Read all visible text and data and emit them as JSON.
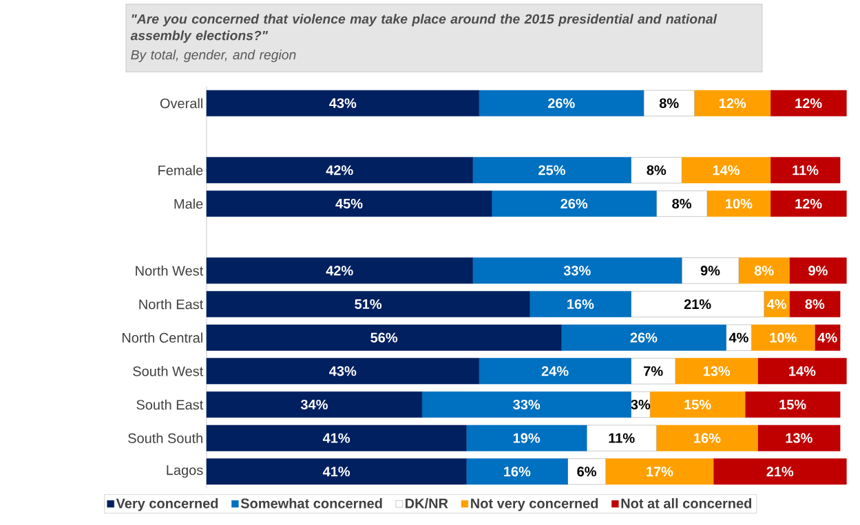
{
  "chart_data": {
    "type": "bar",
    "orientation": "horizontal",
    "stacked": true,
    "title": "\"Are you concerned that violence may take place around the 2015 presidential and national assembly elections?\"",
    "subtitle": "By total, gender, and region",
    "categories": [
      "Overall",
      null,
      "Female",
      "Male",
      null,
      "North West",
      "North East",
      "North Central",
      "South West",
      "South East",
      "South South",
      "Lagos"
    ],
    "series": [
      {
        "name": "Very concerned",
        "color": "#002060",
        "values": [
          43,
          null,
          42,
          45,
          null,
          42,
          51,
          56,
          43,
          34,
          41,
          41
        ],
        "value_labels": [
          "43%",
          null,
          "42%",
          "45%",
          null,
          "42%",
          "51%",
          "56%",
          "43%",
          "34%",
          "41%",
          "41%"
        ]
      },
      {
        "name": "Somewhat concerned",
        "color": "#0070c0",
        "values": [
          26,
          null,
          25,
          26,
          null,
          33,
          16,
          26,
          24,
          33,
          19,
          16
        ],
        "value_labels": [
          "26%",
          null,
          "25%",
          "26%",
          null,
          "33%",
          "16%",
          "26%",
          "24%",
          "33%",
          "19%",
          "16%"
        ]
      },
      {
        "name": "DK/NR",
        "color": "#ffffff",
        "values": [
          8,
          null,
          8,
          8,
          null,
          9,
          21,
          4,
          7,
          3,
          11,
          6
        ],
        "value_labels": [
          "8%",
          null,
          "8%",
          "8%",
          null,
          "9%",
          "21%",
          "4%",
          "7%",
          "3%",
          "11%",
          "6%"
        ]
      },
      {
        "name": "Not very concerned",
        "color": "#ffa000",
        "values": [
          12,
          null,
          14,
          10,
          null,
          8,
          4,
          10,
          13,
          15,
          16,
          17
        ],
        "value_labels": [
          "12%",
          null,
          "14%",
          "10%",
          null,
          "8%",
          "4%",
          "10%",
          "13%",
          "15%",
          "16%",
          "17%"
        ]
      },
      {
        "name": "Not at all concerned",
        "color": "#c00000",
        "values": [
          12,
          null,
          11,
          12,
          null,
          9,
          8,
          4,
          14,
          15,
          13,
          21
        ],
        "value_labels": [
          "12%",
          null,
          "11%",
          "12%",
          null,
          "9%",
          "8%",
          "4%",
          "14%",
          "15%",
          "13%",
          "21%"
        ]
      }
    ],
    "legend": "bottom"
  }
}
